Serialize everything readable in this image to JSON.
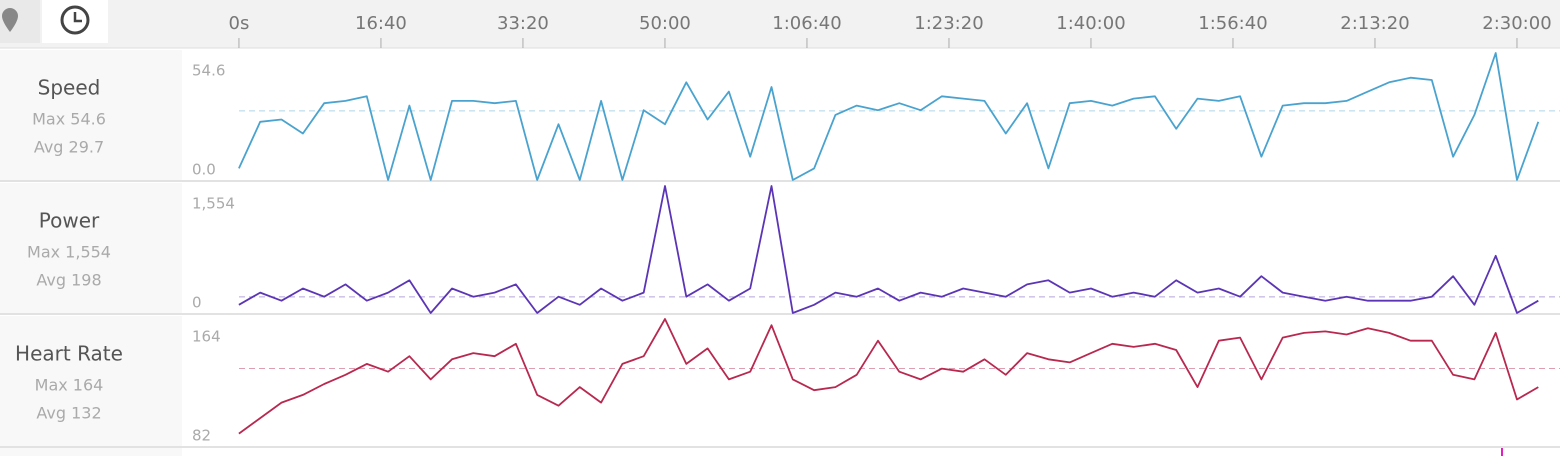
{
  "timeline": {
    "xlim": [
      -394,
      9303
    ],
    "xticks": [
      {
        "value": 0,
        "label": "0s"
      },
      {
        "value": 1000,
        "label": "16:40"
      },
      {
        "value": 2000,
        "label": "33:20"
      },
      {
        "value": 3000,
        "label": "50:00"
      },
      {
        "value": 4000,
        "label": "1:06:40"
      },
      {
        "value": 5000,
        "label": "1:23:20"
      },
      {
        "value": 6000,
        "label": "1:40:00"
      },
      {
        "value": 7000,
        "label": "1:56:40"
      },
      {
        "value": 8000,
        "label": "2:13:20"
      },
      {
        "value": 9000,
        "label": "2:30:00"
      }
    ]
  },
  "chart_data": [
    {
      "type": "line",
      "title": "Speed",
      "max_label": "Max 54.6",
      "avg_label": "Avg 29.7",
      "average": 29.7,
      "color": "#4aa3cf",
      "x": [
        0,
        150,
        300,
        450,
        600,
        750,
        900,
        1050,
        1200,
        1350,
        1500,
        1650,
        1800,
        1950,
        2100,
        2250,
        2400,
        2550,
        2700,
        2850,
        3000,
        3150,
        3300,
        3450,
        3600,
        3750,
        3900,
        4050,
        4200,
        4350,
        4500,
        4650,
        4800,
        4950,
        5100,
        5250,
        5400,
        5550,
        5700,
        5850,
        6000,
        6150,
        6300,
        6450,
        6600,
        6750,
        6900,
        7050,
        7200,
        7350,
        7500,
        7650,
        7800,
        7950,
        8100,
        8250,
        8400,
        8550,
        8700,
        8850,
        9000,
        9150
      ],
      "values": [
        5,
        25,
        26,
        20,
        33,
        34,
        36,
        0,
        32,
        0,
        34,
        34,
        33,
        34,
        0,
        24,
        0,
        34,
        0,
        30,
        24,
        42,
        26,
        38,
        10,
        40,
        0,
        5,
        28,
        32,
        30,
        33,
        30,
        36,
        35,
        34,
        20,
        33,
        5,
        33,
        34,
        32,
        35,
        36,
        22,
        35,
        34,
        36,
        10,
        32,
        33,
        33,
        34,
        38,
        42,
        44,
        43,
        10,
        28,
        54.6,
        0,
        25
      ],
      "ylim": [
        0,
        54.6
      ],
      "yticks": [
        {
          "value": 0,
          "label": "0.0"
        },
        54.6
      ]
    },
    {
      "type": "line",
      "title": "Power",
      "max_label": "Max 1,554",
      "avg_label": "Avg 198",
      "average": 198,
      "color": "#5b35b5",
      "x": [
        0,
        150,
        300,
        450,
        600,
        750,
        900,
        1050,
        1200,
        1350,
        1500,
        1650,
        1800,
        1950,
        2100,
        2250,
        2400,
        2550,
        2700,
        2850,
        3000,
        3150,
        3300,
        3450,
        3600,
        3750,
        3900,
        4050,
        4200,
        4350,
        4500,
        4650,
        4800,
        4950,
        5100,
        5250,
        5400,
        5550,
        5700,
        5850,
        6000,
        6150,
        6300,
        6450,
        6600,
        6750,
        6900,
        7050,
        7200,
        7350,
        7500,
        7650,
        7800,
        7950,
        8100,
        8250,
        8400,
        8550,
        8700,
        8850,
        9000,
        9150
      ],
      "values": [
        100,
        250,
        150,
        300,
        200,
        350,
        150,
        250,
        400,
        0,
        300,
        200,
        250,
        350,
        0,
        200,
        100,
        300,
        150,
        250,
        1554,
        200,
        350,
        150,
        300,
        1554,
        0,
        100,
        250,
        200,
        300,
        150,
        250,
        200,
        300,
        250,
        200,
        350,
        400,
        250,
        300,
        200,
        250,
        200,
        400,
        250,
        300,
        200,
        450,
        250,
        200,
        150,
        200,
        150,
        150,
        150,
        200,
        450,
        100,
        700,
        0,
        150
      ],
      "ylim": [
        0,
        1554
      ],
      "yticks": [
        0,
        {
          "value": 1554,
          "label": "1,554"
        }
      ]
    },
    {
      "type": "line",
      "title": "Heart Rate",
      "max_label": "Max 164",
      "avg_label": "Avg 132",
      "average": 132,
      "color": "#b8284f",
      "x": [
        0,
        150,
        300,
        450,
        600,
        750,
        900,
        1050,
        1200,
        1350,
        1500,
        1650,
        1800,
        1950,
        2100,
        2250,
        2400,
        2550,
        2700,
        2850,
        3000,
        3150,
        3300,
        3450,
        3600,
        3750,
        3900,
        4050,
        4200,
        4350,
        4500,
        4650,
        4800,
        4950,
        5100,
        5250,
        5400,
        5550,
        5700,
        5850,
        6000,
        6150,
        6300,
        6450,
        6600,
        6750,
        6900,
        7050,
        7200,
        7350,
        7500,
        7650,
        7800,
        7950,
        8100,
        8250,
        8400,
        8550,
        8700,
        8850,
        9000,
        9150
      ],
      "values": [
        90,
        100,
        110,
        115,
        122,
        128,
        135,
        130,
        140,
        125,
        138,
        142,
        140,
        148,
        115,
        108,
        120,
        110,
        135,
        140,
        164,
        135,
        145,
        125,
        130,
        160,
        125,
        118,
        120,
        128,
        150,
        130,
        125,
        132,
        130,
        138,
        128,
        142,
        138,
        136,
        142,
        148,
        146,
        148,
        144,
        120,
        150,
        152,
        125,
        152,
        155,
        156,
        154,
        158,
        155,
        150,
        150,
        128,
        125,
        155,
        112,
        120
      ],
      "ylim": [
        82,
        164
      ],
      "yticks": [
        82,
        164
      ]
    }
  ]
}
